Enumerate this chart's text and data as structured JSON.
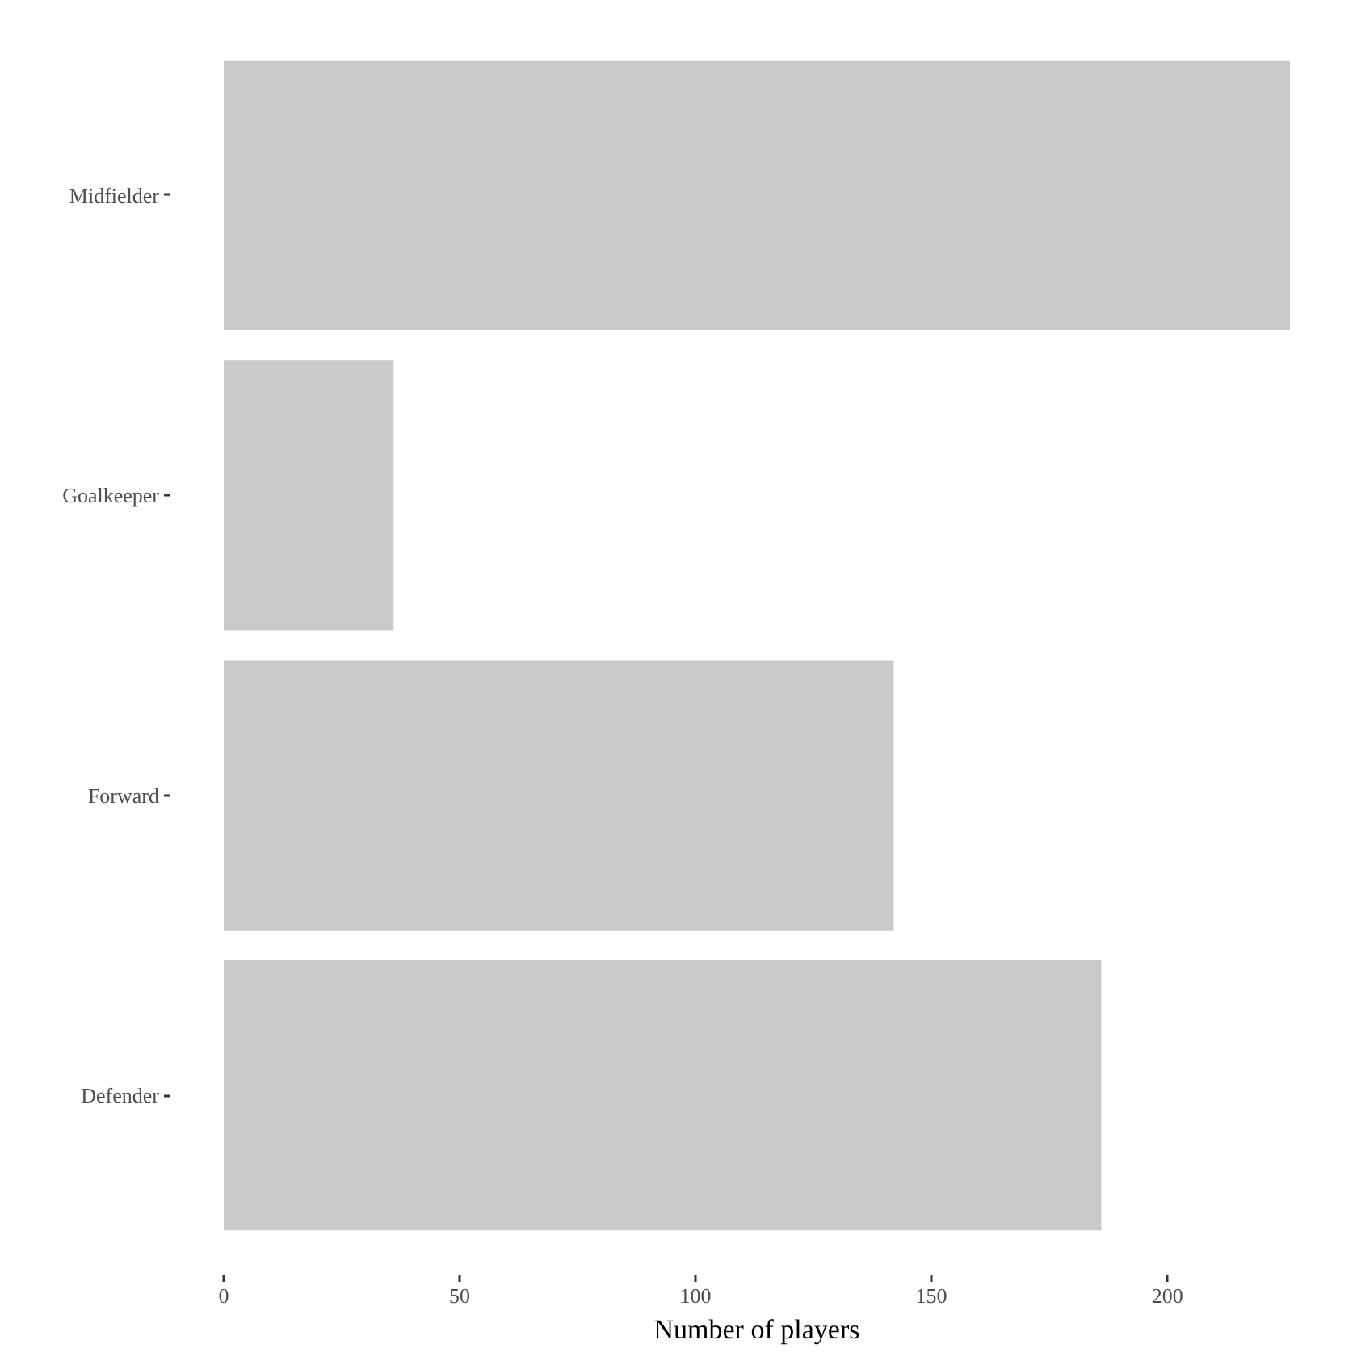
{
  "chart_data": {
    "type": "bar",
    "orientation": "horizontal",
    "categories": [
      "Midfielder",
      "Goalkeeper",
      "Forward",
      "Defender"
    ],
    "values": [
      226,
      36,
      142,
      186
    ],
    "color": "#c9c9c9",
    "xlabel": "Number of players",
    "xlim": [
      0,
      226
    ],
    "xticks": [
      0,
      50,
      100,
      150,
      200
    ]
  }
}
